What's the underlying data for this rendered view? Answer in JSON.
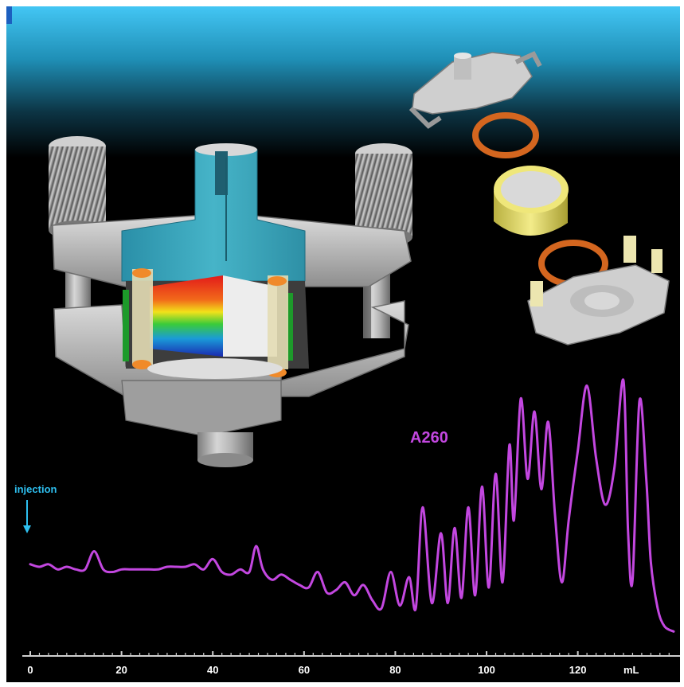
{
  "chart_data": {
    "type": "line",
    "title": "",
    "xlabel": "",
    "ylabel": "",
    "unit": "mL",
    "xlim": [
      0,
      141
    ],
    "ylim": [
      0,
      1
    ],
    "x_ticks": [
      0,
      20,
      40,
      60,
      80,
      100,
      120
    ],
    "grid": false,
    "series": [
      {
        "name": "A260",
        "color": "#c347e0",
        "x": [
          0,
          2,
          4,
          6,
          8,
          10,
          12,
          14,
          16,
          18,
          20,
          22,
          24,
          26,
          28,
          30,
          32,
          34,
          36,
          38,
          40,
          42,
          44,
          46,
          48,
          49.5,
          51,
          53,
          55,
          57,
          59,
          61,
          63,
          65,
          67,
          69,
          71,
          73,
          75,
          77,
          79,
          81,
          83,
          84.5,
          86,
          88,
          90,
          91.5,
          93,
          94.5,
          96,
          97.5,
          99,
          100.5,
          102,
          103.5,
          105,
          106,
          107.5,
          109,
          110.5,
          112,
          113.5,
          115,
          116.5,
          118,
          120,
          122,
          124,
          126,
          128,
          130,
          131,
          132,
          133.5,
          135,
          136,
          137.5,
          139,
          141
        ],
        "values": [
          0.29,
          0.28,
          0.29,
          0.27,
          0.28,
          0.27,
          0.27,
          0.34,
          0.27,
          0.26,
          0.27,
          0.27,
          0.27,
          0.27,
          0.27,
          0.28,
          0.28,
          0.28,
          0.29,
          0.27,
          0.31,
          0.26,
          0.25,
          0.27,
          0.26,
          0.36,
          0.27,
          0.23,
          0.25,
          0.23,
          0.21,
          0.2,
          0.26,
          0.18,
          0.19,
          0.22,
          0.17,
          0.21,
          0.15,
          0.12,
          0.26,
          0.13,
          0.24,
          0.12,
          0.51,
          0.14,
          0.41,
          0.14,
          0.43,
          0.16,
          0.51,
          0.17,
          0.59,
          0.2,
          0.64,
          0.22,
          0.75,
          0.46,
          0.93,
          0.62,
          0.88,
          0.58,
          0.84,
          0.48,
          0.22,
          0.46,
          0.73,
          0.98,
          0.7,
          0.52,
          0.66,
          1.0,
          0.42,
          0.23,
          0.92,
          0.62,
          0.3,
          0.12,
          0.05,
          0.03
        ]
      }
    ],
    "annotations": [
      {
        "text": "injection",
        "x": 0,
        "color": "#2ec0f0"
      }
    ]
  }
}
